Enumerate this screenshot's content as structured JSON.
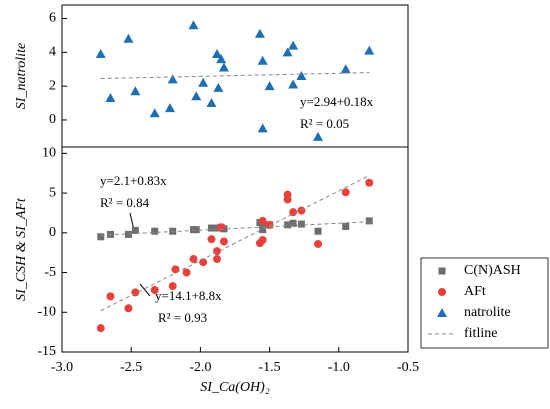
{
  "chart_data": [
    {
      "type": "scatter",
      "ylabel": "SI_natrolite",
      "xlim": [
        -3,
        -0.5
      ],
      "ylim": [
        -1.6,
        6.8
      ],
      "yticks": [
        0,
        2,
        4,
        6
      ],
      "annotations": [
        "y=2.94+0.18x",
        "R² = 0.05"
      ],
      "series": [
        {
          "name": "natrolite",
          "color": "#1f6fb2",
          "marker": "triangle",
          "x": [
            -2.72,
            -2.65,
            -2.52,
            -2.47,
            -2.33,
            -2.22,
            -2.2,
            -2.05,
            -2.03,
            -1.98,
            -1.92,
            -1.88,
            -1.85,
            -1.83,
            -1.87,
            -1.57,
            -1.55,
            -1.55,
            -1.5,
            -1.37,
            -1.33,
            -1.33,
            -1.27,
            -1.15,
            -0.95,
            -0.78
          ],
          "values": [
            3.9,
            1.3,
            4.8,
            1.7,
            0.4,
            0.7,
            2.4,
            5.6,
            1.4,
            2.2,
            1.0,
            3.9,
            3.6,
            3.1,
            1.9,
            5.1,
            3.5,
            -0.5,
            2.0,
            4.0,
            4.4,
            2.1,
            2.6,
            -1.0,
            3.0,
            4.1
          ]
        },
        {
          "color": "#888888",
          "dash": true,
          "x": [
            -2.72,
            -0.78
          ],
          "values": [
            2.45,
            2.8
          ]
        }
      ]
    },
    {
      "type": "scatter",
      "ylabel": "SI_CSH & SI_AFt",
      "xlabel": "SI_Ca(OH)₂",
      "xlim": [
        -3,
        -0.5
      ],
      "ylim": [
        -15,
        10.8
      ],
      "yticks": [
        10,
        5,
        0,
        -5,
        -10,
        -15
      ],
      "xticks": [
        {
          "value": -3,
          "label": "-3.0"
        },
        {
          "value": -2.5,
          "label": "-2.5"
        },
        {
          "value": -2,
          "label": "-2.0"
        },
        {
          "value": -1.5,
          "label": "-1.5"
        },
        {
          "value": -1,
          "label": "-1.0"
        },
        {
          "value": -0.5,
          "label": "-0.5"
        }
      ],
      "annotations": [
        "y=2.1+0.83x",
        "R² = 0.84",
        "y=14.1+8.8x",
        "R² = 0.93"
      ],
      "series": [
        {
          "name": "C(N)ASH",
          "color": "#6e6e6e",
          "marker": "square",
          "x": [
            -2.72,
            -2.65,
            -2.52,
            -2.47,
            -2.33,
            -2.2,
            -2.05,
            -2.03,
            -1.92,
            -1.88,
            -1.85,
            -1.83,
            -1.57,
            -1.55,
            -1.55,
            -1.5,
            -1.37,
            -1.33,
            -1.27,
            -1.15,
            -0.95,
            -0.78
          ],
          "values": [
            -0.5,
            -0.2,
            -0.2,
            0.3,
            0.2,
            0.2,
            0.4,
            0.4,
            0.6,
            0.6,
            0.7,
            0.5,
            1.3,
            1.1,
            0.4,
            1.0,
            1.0,
            1.2,
            1.1,
            0.2,
            0.8,
            1.5
          ]
        },
        {
          "name": "AFt",
          "color": "#e8413c",
          "marker": "circle",
          "x": [
            -2.72,
            -2.65,
            -2.52,
            -2.47,
            -2.33,
            -2.2,
            -2.18,
            -2.1,
            -2.05,
            -1.98,
            -1.92,
            -1.88,
            -1.88,
            -1.83,
            -1.85,
            -1.57,
            -1.55,
            -1.55,
            -1.5,
            -1.37,
            -1.37,
            -1.33,
            -1.27,
            -1.15,
            -0.95,
            -0.78
          ],
          "values": [
            -12.0,
            -8.0,
            -9.5,
            -7.5,
            -7.2,
            -6.7,
            -4.6,
            -5.0,
            -3.3,
            -3.7,
            -0.8,
            -3.3,
            -2.3,
            -1.1,
            0.7,
            -1.3,
            1.5,
            -0.9,
            1.0,
            4.8,
            4.2,
            2.6,
            2.8,
            -1.4,
            5.1,
            6.3
          ]
        },
        {
          "color": "#888888",
          "dash": true,
          "x": [
            -2.72,
            -0.78
          ],
          "values": [
            -0.3,
            1.4
          ]
        },
        {
          "name": "fitline",
          "color": "#888888",
          "dash": true,
          "x": [
            -2.72,
            -0.78
          ],
          "values": [
            -9.8,
            7.2
          ]
        }
      ]
    }
  ]
}
